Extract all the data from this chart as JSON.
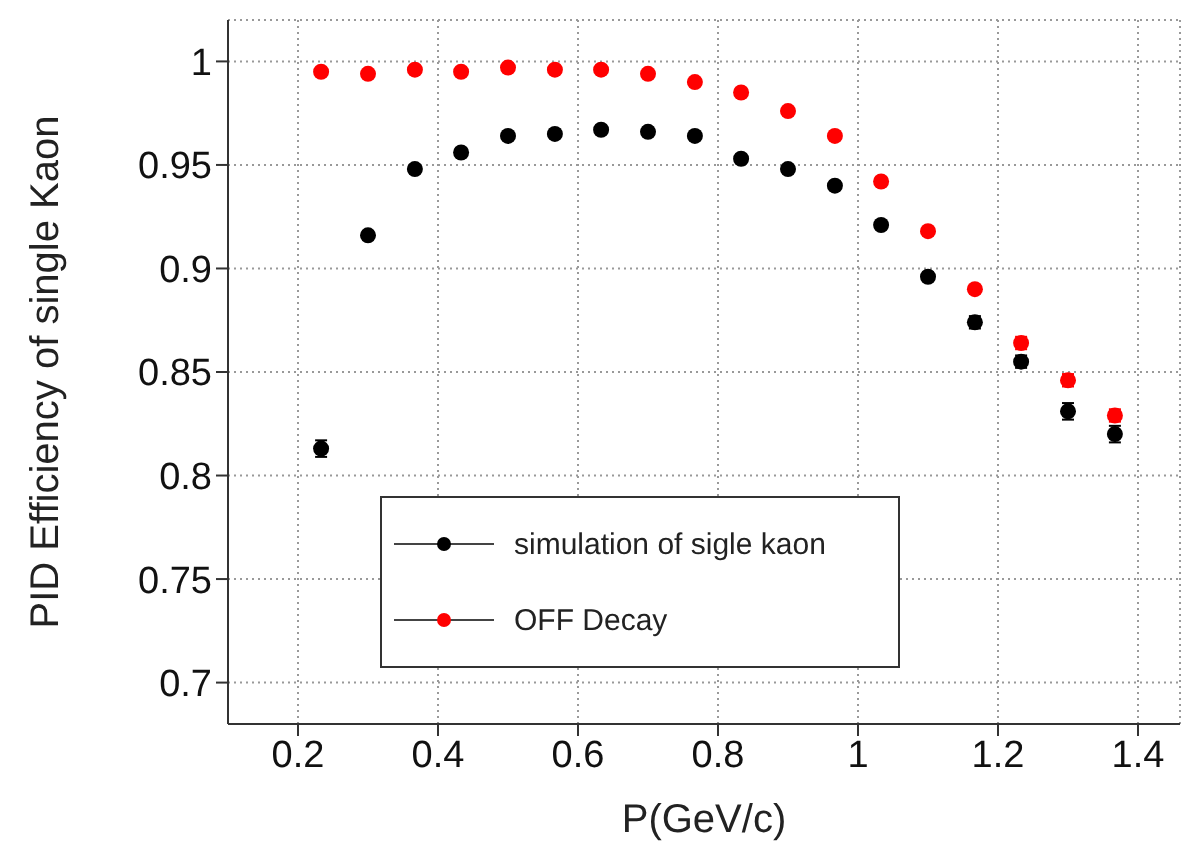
{
  "chart_data": {
    "type": "scatter",
    "xlabel": "P(GeV/c)",
    "ylabel": "PID Efficiency of single Kaon",
    "x": [
      0.233,
      0.3,
      0.367,
      0.433,
      0.5,
      0.567,
      0.633,
      0.7,
      0.767,
      0.833,
      0.9,
      0.967,
      1.033,
      1.1,
      1.167,
      1.233,
      1.3,
      1.367
    ],
    "series": [
      {
        "name": "simulation of sigle kaon",
        "color": "#000000",
        "values": [
          0.813,
          0.916,
          0.948,
          0.956,
          0.964,
          0.965,
          0.967,
          0.966,
          0.964,
          0.953,
          0.948,
          0.94,
          0.921,
          0.896,
          0.874,
          0.855,
          0.831,
          0.82
        ],
        "errors": [
          0.004,
          0.002,
          0.002,
          0.002,
          0.002,
          0.002,
          0.002,
          0.002,
          0.002,
          0.002,
          0.002,
          0.002,
          0.002,
          0.002,
          0.003,
          0.003,
          0.004,
          0.004
        ]
      },
      {
        "name": "OFF Decay",
        "color": "#ff0000",
        "values": [
          0.995,
          0.994,
          0.996,
          0.995,
          0.997,
          0.996,
          0.996,
          0.994,
          0.99,
          0.985,
          0.976,
          0.964,
          0.942,
          0.918,
          0.89,
          0.864,
          0.846,
          0.829
        ],
        "errors": [
          0.001,
          0.001,
          0.001,
          0.001,
          0.001,
          0.001,
          0.001,
          0.001,
          0.001,
          0.001,
          0.002,
          0.002,
          0.002,
          0.002,
          0.002,
          0.003,
          0.003,
          0.003
        ]
      }
    ],
    "xlim": [
      0.1,
      1.46
    ],
    "xticks": [
      0.2,
      0.4,
      0.6,
      0.8,
      1,
      1.2,
      1.4
    ],
    "ylim": [
      0.68,
      1.02
    ],
    "yticks": [
      0.7,
      0.75,
      0.8,
      0.85,
      0.9,
      0.95,
      1
    ],
    "grid": true,
    "legend": "bottom",
    "marker": "circle"
  }
}
